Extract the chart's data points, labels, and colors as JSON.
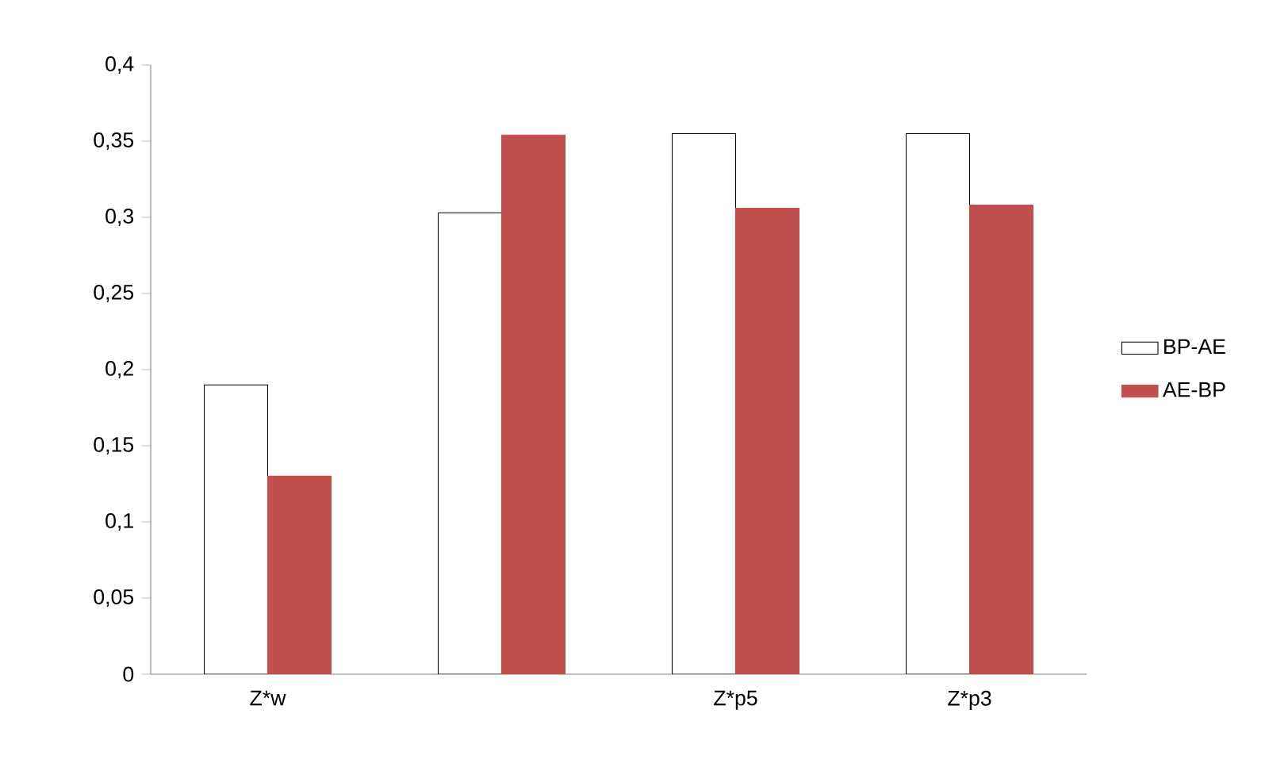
{
  "chart_data": {
    "type": "bar",
    "categories": [
      "Z*w",
      null,
      "Z*p5",
      "Z*p3"
    ],
    "series": [
      {
        "name": "BP-AE",
        "color": "#ffffff",
        "values": [
          0.19,
          0.303,
          0.355,
          0.355
        ]
      },
      {
        "name": "AE-BP",
        "color": "#c0504d",
        "values": [
          0.13,
          0.354,
          0.306,
          0.308
        ]
      }
    ],
    "ylim": [
      0,
      0.4
    ],
    "yticks": [
      0,
      {
        "value": 0.05,
        "label": "0,05"
      },
      {
        "value": 0.1,
        "label": "0,1"
      },
      {
        "value": 0.15,
        "label": "0,15"
      },
      {
        "value": 0.2,
        "label": "0,2"
      },
      {
        "value": 0.25,
        "label": "0,25"
      },
      {
        "value": 0.3,
        "label": "0,3"
      },
      {
        "value": 0.35,
        "label": "0,35"
      },
      {
        "value": 0.4,
        "label": "0,4"
      }
    ],
    "grid": false,
    "legend": "right"
  }
}
